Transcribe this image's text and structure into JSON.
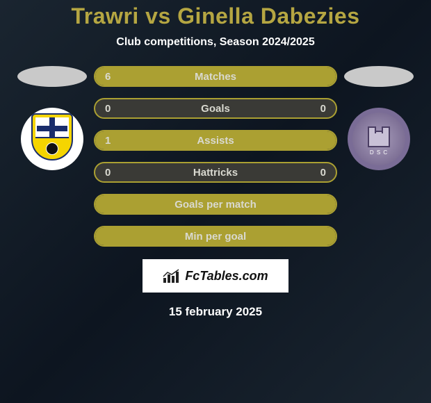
{
  "title": "Trawri vs Ginella Dabezies",
  "subtitle": "Club competitions, Season 2024/2025",
  "left_club": {
    "name": "nk-inter-zapresic"
  },
  "right_club": {
    "name": "defensor-sc",
    "abbrev": "D S C"
  },
  "bars": [
    {
      "label": "Matches",
      "left": "6",
      "right": "",
      "left_fill_pct": 100,
      "right_fill_pct": 0
    },
    {
      "label": "Goals",
      "left": "0",
      "right": "0",
      "left_fill_pct": 0,
      "right_fill_pct": 0
    },
    {
      "label": "Assists",
      "left": "1",
      "right": "",
      "left_fill_pct": 100,
      "right_fill_pct": 0
    },
    {
      "label": "Hattricks",
      "left": "0",
      "right": "0",
      "left_fill_pct": 0,
      "right_fill_pct": 0
    },
    {
      "label": "Goals per match",
      "left": "",
      "right": "",
      "left_fill_pct": 100,
      "right_fill_pct": 0,
      "full": true
    },
    {
      "label": "Min per goal",
      "left": "",
      "right": "",
      "left_fill_pct": 100,
      "right_fill_pct": 0,
      "full": true
    }
  ],
  "colors": {
    "accent": "#aba032",
    "bar_bg": "#3a3a36",
    "title": "#b5a642",
    "text_on_bar": "#d9d9d0",
    "background_dark": "#0d1520"
  },
  "branding": {
    "site_name": "FcTables.com"
  },
  "date": "15 february 2025"
}
